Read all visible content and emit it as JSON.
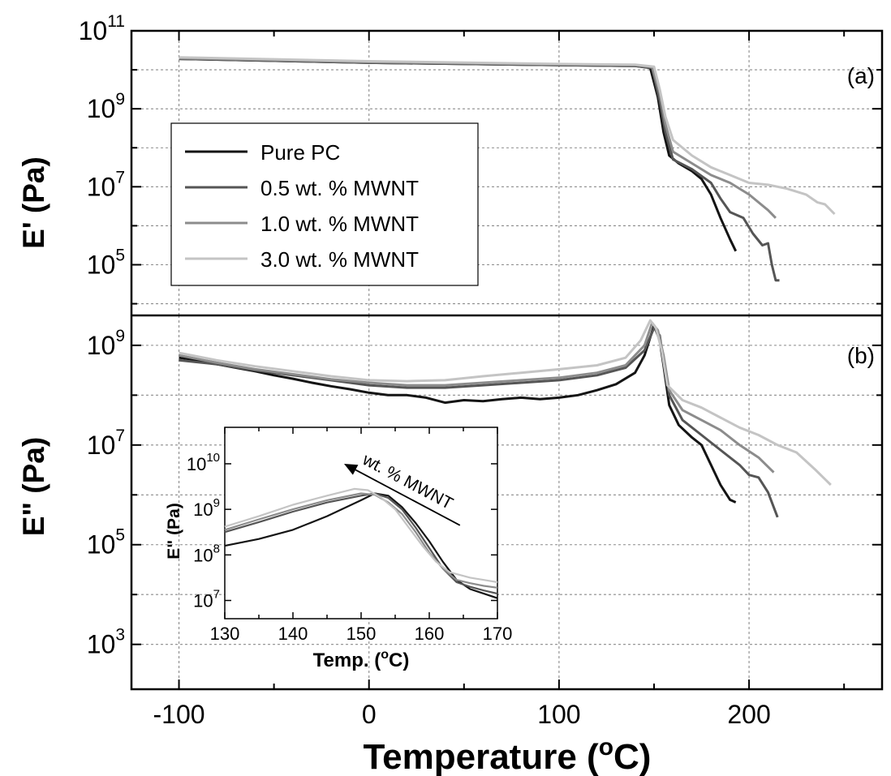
{
  "colors": {
    "pure_pc": "#141414",
    "mwnt_05": "#555555",
    "mwnt_10": "#8c8c8c",
    "mwnt_30": "#c4c4c4",
    "grid": "#8a8a8a"
  },
  "chart_data": [
    {
      "type": "line",
      "panel_label": "(a)",
      "ylabel": "E' (Pa)",
      "xlabel": "",
      "xlim": [
        -125,
        270
      ],
      "ylim_log10": [
        3.7,
        11
      ],
      "yscale": "log",
      "x_ticks": [
        "-100",
        "0",
        "100",
        "200"
      ],
      "y_ticks": [
        {
          "base": "10",
          "exp": "5"
        },
        {
          "base": "10",
          "exp": "7"
        },
        {
          "base": "10",
          "exp": "9"
        },
        {
          "base": "10",
          "exp": "11"
        }
      ],
      "grid": true,
      "legend_position": "left",
      "legend": [
        "Pure PC",
        "0.5 wt. % MWNT",
        "1.0 wt. % MWNT",
        "3.0 wt. % MWNT"
      ],
      "series": [
        {
          "name": "Pure PC",
          "points": [
            [
              -100,
              10.28
            ],
            [
              0,
              10.18
            ],
            [
              100,
              10.12
            ],
            [
              140,
              10.1
            ],
            [
              148,
              10.05
            ],
            [
              152,
              9.3
            ],
            [
              155,
              8.4
            ],
            [
              158,
              7.8
            ],
            [
              163,
              7.6
            ],
            [
              170,
              7.4
            ],
            [
              175,
              7.2
            ],
            [
              180,
              6.8
            ],
            [
              185,
              6.2
            ],
            [
              190,
              5.65
            ],
            [
              193,
              5.35
            ]
          ]
        },
        {
          "name": "0.5 wt. % MWNT",
          "points": [
            [
              -100,
              10.28
            ],
            [
              0,
              10.18
            ],
            [
              100,
              10.12
            ],
            [
              140,
              10.1
            ],
            [
              149,
              10.05
            ],
            [
              153,
              9.2
            ],
            [
              156,
              8.4
            ],
            [
              160,
              7.7
            ],
            [
              170,
              7.45
            ],
            [
              180,
              7.1
            ],
            [
              185,
              6.7
            ],
            [
              190,
              6.35
            ],
            [
              197,
              6.2
            ],
            [
              202,
              5.8
            ],
            [
              207,
              5.5
            ],
            [
              210,
              5.55
            ],
            [
              212,
              5.0
            ],
            [
              214,
              4.6
            ],
            [
              216,
              4.6
            ]
          ]
        },
        {
          "name": "1.0 wt. % MWNT",
          "points": [
            [
              -100,
              10.3
            ],
            [
              0,
              10.2
            ],
            [
              100,
              10.14
            ],
            [
              140,
              10.12
            ],
            [
              149,
              10.07
            ],
            [
              153,
              9.4
            ],
            [
              156,
              8.6
            ],
            [
              160,
              7.9
            ],
            [
              170,
              7.6
            ],
            [
              180,
              7.3
            ],
            [
              190,
              7.1
            ],
            [
              200,
              6.8
            ],
            [
              210,
              6.4
            ],
            [
              214,
              6.2
            ]
          ]
        },
        {
          "name": "3.0 wt. % MWNT",
          "points": [
            [
              -100,
              10.32
            ],
            [
              0,
              10.22
            ],
            [
              100,
              10.15
            ],
            [
              140,
              10.13
            ],
            [
              150,
              10.08
            ],
            [
              153,
              9.5
            ],
            [
              156,
              8.8
            ],
            [
              160,
              8.2
            ],
            [
              170,
              7.8
            ],
            [
              180,
              7.5
            ],
            [
              190,
              7.3
            ],
            [
              200,
              7.1
            ],
            [
              210,
              7.05
            ],
            [
              220,
              6.95
            ],
            [
              230,
              6.8
            ],
            [
              236,
              6.6
            ],
            [
              240,
              6.55
            ],
            [
              245,
              6.3
            ]
          ]
        }
      ]
    },
    {
      "type": "line",
      "panel_label": "(b)",
      "ylabel": "E\" (Pa)",
      "xlabel": "Temperature (oC)",
      "xlabel_parts": [
        "Temperature (",
        "o",
        "C)"
      ],
      "xlim": [
        -125,
        270
      ],
      "ylim_log10": [
        2.1,
        9.6
      ],
      "yscale": "log",
      "y_ticks": [
        {
          "base": "10",
          "exp": "3"
        },
        {
          "base": "10",
          "exp": "5"
        },
        {
          "base": "10",
          "exp": "7"
        },
        {
          "base": "10",
          "exp": "9"
        }
      ],
      "grid": true,
      "series": [
        {
          "name": "Pure PC",
          "points": [
            [
              -100,
              8.75
            ],
            [
              -90,
              8.7
            ],
            [
              -80,
              8.62
            ],
            [
              -70,
              8.55
            ],
            [
              -60,
              8.48
            ],
            [
              -50,
              8.4
            ],
            [
              -40,
              8.33
            ],
            [
              -30,
              8.25
            ],
            [
              -20,
              8.18
            ],
            [
              -10,
              8.12
            ],
            [
              0,
              8.05
            ],
            [
              10,
              8.0
            ],
            [
              20,
              8.0
            ],
            [
              30,
              7.95
            ],
            [
              40,
              7.85
            ],
            [
              50,
              7.9
            ],
            [
              60,
              7.88
            ],
            [
              70,
              7.92
            ],
            [
              80,
              7.95
            ],
            [
              90,
              7.92
            ],
            [
              100,
              7.95
            ],
            [
              110,
              8.0
            ],
            [
              120,
              8.1
            ],
            [
              130,
              8.22
            ],
            [
              140,
              8.45
            ],
            [
              145,
              8.8
            ],
            [
              150,
              9.4
            ],
            [
              153,
              9.1
            ],
            [
              155,
              8.6
            ],
            [
              158,
              7.8
            ],
            [
              163,
              7.4
            ],
            [
              170,
              7.15
            ],
            [
              175,
              7.0
            ],
            [
              180,
              6.6
            ],
            [
              185,
              6.2
            ],
            [
              190,
              5.9
            ],
            [
              193,
              5.85
            ]
          ]
        },
        {
          "name": "0.5 wt. % MWNT",
          "points": [
            [
              -100,
              8.7
            ],
            [
              -80,
              8.62
            ],
            [
              -60,
              8.5
            ],
            [
              -40,
              8.4
            ],
            [
              -20,
              8.3
            ],
            [
              0,
              8.2
            ],
            [
              20,
              8.15
            ],
            [
              40,
              8.15
            ],
            [
              60,
              8.2
            ],
            [
              80,
              8.25
            ],
            [
              100,
              8.3
            ],
            [
              120,
              8.4
            ],
            [
              135,
              8.55
            ],
            [
              145,
              8.9
            ],
            [
              150,
              9.35
            ],
            [
              153,
              9.2
            ],
            [
              155,
              8.7
            ],
            [
              158,
              8.0
            ],
            [
              165,
              7.5
            ],
            [
              175,
              7.2
            ],
            [
              185,
              6.9
            ],
            [
              195,
              6.6
            ],
            [
              200,
              6.4
            ],
            [
              205,
              6.35
            ],
            [
              210,
              6.05
            ],
            [
              215,
              5.55
            ]
          ]
        },
        {
          "name": "1.0 wt. % MWNT",
          "points": [
            [
              -100,
              8.8
            ],
            [
              -80,
              8.65
            ],
            [
              -60,
              8.52
            ],
            [
              -40,
              8.42
            ],
            [
              -20,
              8.32
            ],
            [
              0,
              8.25
            ],
            [
              20,
              8.2
            ],
            [
              40,
              8.2
            ],
            [
              60,
              8.25
            ],
            [
              80,
              8.3
            ],
            [
              100,
              8.35
            ],
            [
              120,
              8.45
            ],
            [
              135,
              8.6
            ],
            [
              145,
              9.0
            ],
            [
              149,
              9.45
            ],
            [
              152,
              9.3
            ],
            [
              155,
              8.8
            ],
            [
              158,
              8.1
            ],
            [
              165,
              7.7
            ],
            [
              175,
              7.5
            ],
            [
              185,
              7.3
            ],
            [
              195,
              7.0
            ],
            [
              205,
              6.75
            ],
            [
              213,
              6.45
            ]
          ]
        },
        {
          "name": "3.0 wt. % MWNT",
          "points": [
            [
              -100,
              8.85
            ],
            [
              -80,
              8.7
            ],
            [
              -60,
              8.58
            ],
            [
              -40,
              8.48
            ],
            [
              -20,
              8.38
            ],
            [
              0,
              8.3
            ],
            [
              20,
              8.28
            ],
            [
              40,
              8.3
            ],
            [
              60,
              8.38
            ],
            [
              80,
              8.45
            ],
            [
              100,
              8.52
            ],
            [
              120,
              8.6
            ],
            [
              135,
              8.75
            ],
            [
              143,
              9.1
            ],
            [
              148,
              9.5
            ],
            [
              151,
              9.35
            ],
            [
              154,
              8.9
            ],
            [
              157,
              8.2
            ],
            [
              165,
              7.9
            ],
            [
              175,
              7.75
            ],
            [
              185,
              7.55
            ],
            [
              195,
              7.35
            ],
            [
              205,
              7.2
            ],
            [
              215,
              7.0
            ],
            [
              225,
              6.85
            ],
            [
              235,
              6.5
            ],
            [
              243,
              6.2
            ]
          ]
        }
      ]
    },
    {
      "type": "line",
      "inset": true,
      "xlabel": "Temp. (oC)",
      "xlabel_parts": [
        "Temp. (",
        "o",
        "C)"
      ],
      "ylabel": "E\" (Pa)",
      "xlim": [
        130,
        170
      ],
      "ylim_log10": [
        6.6,
        10.8
      ],
      "yscale": "log",
      "x_ticks": [
        "130",
        "140",
        "150",
        "160",
        "170"
      ],
      "y_ticks": [
        {
          "base": "10",
          "exp": "7"
        },
        {
          "base": "10",
          "exp": "8"
        },
        {
          "base": "10",
          "exp": "9"
        },
        {
          "base": "10",
          "exp": "10"
        }
      ],
      "annotation": "wt. % MWNT",
      "arrow": {
        "from": [
          164.5,
          8.65
        ],
        "to": [
          147.5,
          10.0
        ]
      },
      "series": [
        {
          "name": "Pure PC",
          "points": [
            [
              130,
              8.2
            ],
            [
              135,
              8.35
            ],
            [
              140,
              8.55
            ],
            [
              145,
              8.85
            ],
            [
              150,
              9.2
            ],
            [
              152,
              9.35
            ],
            [
              154,
              9.3
            ],
            [
              156,
              9.05
            ],
            [
              158,
              8.7
            ],
            [
              160,
              8.3
            ],
            [
              162,
              7.85
            ],
            [
              164,
              7.45
            ],
            [
              166,
              7.25
            ],
            [
              168,
              7.15
            ],
            [
              170,
              7.05
            ]
          ]
        },
        {
          "name": "0.5 wt. % MWNT",
          "points": [
            [
              130,
              8.5
            ],
            [
              135,
              8.72
            ],
            [
              140,
              8.95
            ],
            [
              145,
              9.15
            ],
            [
              150,
              9.3
            ],
            [
              152,
              9.35
            ],
            [
              154,
              9.25
            ],
            [
              156,
              9.0
            ],
            [
              158,
              8.6
            ],
            [
              160,
              8.15
            ],
            [
              162,
              7.7
            ],
            [
              164,
              7.4
            ],
            [
              166,
              7.3
            ],
            [
              168,
              7.22
            ],
            [
              170,
              7.15
            ]
          ]
        },
        {
          "name": "1.0 wt. % MWNT",
          "points": [
            [
              130,
              8.55
            ],
            [
              135,
              8.78
            ],
            [
              140,
              9.0
            ],
            [
              145,
              9.2
            ],
            [
              150,
              9.35
            ],
            [
              152,
              9.32
            ],
            [
              154,
              9.15
            ],
            [
              156,
              8.9
            ],
            [
              158,
              8.5
            ],
            [
              160,
              8.05
            ],
            [
              162,
              7.7
            ],
            [
              164,
              7.45
            ],
            [
              166,
              7.38
            ],
            [
              168,
              7.32
            ],
            [
              170,
              7.28
            ]
          ]
        },
        {
          "name": "3.0 wt. % MWNT",
          "points": [
            [
              130,
              8.62
            ],
            [
              135,
              8.85
            ],
            [
              140,
              9.1
            ],
            [
              145,
              9.3
            ],
            [
              149,
              9.45
            ],
            [
              151,
              9.42
            ],
            [
              153,
              9.25
            ],
            [
              155,
              9.0
            ],
            [
              157,
              8.6
            ],
            [
              159,
              8.2
            ],
            [
              161,
              7.85
            ],
            [
              163,
              7.62
            ],
            [
              166,
              7.5
            ],
            [
              168,
              7.45
            ],
            [
              170,
              7.4
            ]
          ]
        }
      ]
    }
  ]
}
